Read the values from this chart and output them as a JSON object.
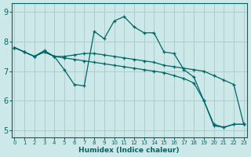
{
  "xlabel": "Humidex (Indice chaleur)",
  "xlim": [
    -0.3,
    23.3
  ],
  "ylim": [
    4.75,
    9.3
  ],
  "yticks": [
    5,
    6,
    7,
    8,
    9
  ],
  "xticks": [
    0,
    1,
    2,
    3,
    4,
    5,
    6,
    7,
    8,
    9,
    10,
    11,
    12,
    13,
    14,
    15,
    16,
    17,
    18,
    19,
    20,
    21,
    22,
    23
  ],
  "bg_color": "#cde8e8",
  "grid_color": "#b0cccc",
  "line_color": "#006666",
  "lines": [
    {
      "x": [
        0,
        1,
        2,
        3,
        4,
        5,
        6,
        7,
        8,
        9,
        10,
        11,
        12,
        13,
        14,
        15,
        16,
        17,
        18,
        19,
        20,
        21,
        22,
        23
      ],
      "y": [
        7.8,
        7.65,
        7.5,
        7.7,
        7.5,
        7.05,
        6.55,
        6.5,
        8.35,
        8.1,
        8.7,
        8.85,
        8.5,
        8.3,
        8.3,
        7.65,
        7.6,
        7.05,
        6.8,
        6.0,
        5.2,
        5.1,
        5.2,
        5.2
      ]
    },
    {
      "x": [
        0,
        1,
        2,
        3,
        4,
        5,
        6,
        7,
        8,
        9,
        10,
        11,
        12,
        13,
        14,
        15,
        16,
        17,
        18,
        19,
        20,
        21,
        22,
        23
      ],
      "y": [
        7.8,
        7.65,
        7.5,
        7.65,
        7.5,
        7.5,
        7.55,
        7.6,
        7.6,
        7.55,
        7.5,
        7.45,
        7.4,
        7.35,
        7.3,
        7.2,
        7.15,
        7.1,
        7.05,
        7.0,
        6.85,
        6.7,
        6.55,
        5.2
      ]
    },
    {
      "x": [
        0,
        1,
        2,
        3,
        4,
        5,
        6,
        7,
        8,
        9,
        10,
        11,
        12,
        13,
        14,
        15,
        16,
        17,
        18,
        19,
        20,
        21,
        22,
        23
      ],
      "y": [
        7.8,
        7.65,
        7.5,
        7.65,
        7.5,
        7.45,
        7.4,
        7.35,
        7.3,
        7.25,
        7.2,
        7.15,
        7.1,
        7.05,
        7.0,
        6.95,
        6.85,
        6.75,
        6.6,
        6.0,
        5.15,
        5.1,
        5.2,
        5.2
      ]
    }
  ]
}
